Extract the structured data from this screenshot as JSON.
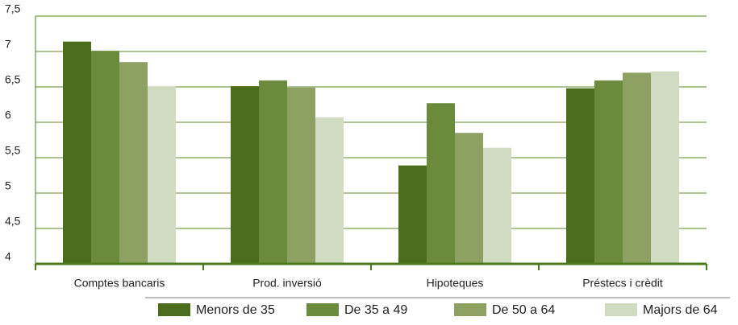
{
  "chart_data": {
    "type": "bar",
    "categories": [
      "Comptes bancaris",
      "Prod. inversió",
      "Hipoteques",
      "Préstecs i crèdit"
    ],
    "series": [
      {
        "name": "Menors de 35",
        "color": "#4b6c1b",
        "values": [
          7.14,
          6.51,
          5.39,
          6.48
        ]
      },
      {
        "name": "De 35 a 49",
        "color": "#6c8a3b",
        "values": [
          7.01,
          6.59,
          6.27,
          6.59
        ]
      },
      {
        "name": "De 50 a 64",
        "color": "#8ea162",
        "values": [
          6.85,
          6.49,
          5.85,
          6.7
        ]
      },
      {
        "name": "Majors de 64",
        "color": "#d1dbc1",
        "values": [
          6.51,
          6.07,
          5.64,
          6.72
        ]
      }
    ],
    "ylim": [
      4,
      7.5
    ],
    "yticks": [
      4,
      {
        "value": 4.5,
        "label": "4,5"
      },
      5,
      {
        "value": 5.5,
        "label": "5,5"
      },
      6,
      {
        "value": 6.5,
        "label": "6,5"
      },
      7,
      {
        "value": 7.5,
        "label": "7,5"
      }
    ],
    "grid": true
  }
}
